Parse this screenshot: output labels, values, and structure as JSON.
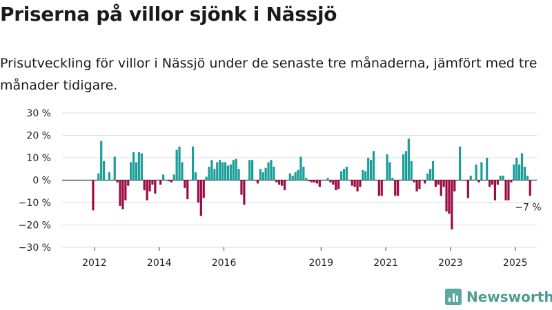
{
  "header": {
    "title": "Priserna på villor sjönk i Nässjö",
    "subtitle": "Prisutveckling för villor i Nässjö under de senaste tre månaderna, jämfört med tre månader tidigare."
  },
  "brand": {
    "name": "Newsworthy",
    "icon": "bar-chart-logo-icon"
  },
  "colors": {
    "positive": "#1b9e9a",
    "negative": "#9c0c43",
    "grid": "#dddddd",
    "zero_line": "#333333"
  },
  "chart_data": {
    "type": "bar",
    "x_start": "2011-01",
    "x_step": "month",
    "x_end": "2025-09",
    "ylim": [
      -30,
      30
    ],
    "yticks": [
      -30,
      -20,
      -10,
      0,
      10,
      20,
      30
    ],
    "ytick_labels": [
      "−30 %",
      "−20 %",
      "−10 %",
      "0 %",
      "10 %",
      "20 %",
      "30 %"
    ],
    "xtick_labels": [
      "2012",
      "2014",
      "2016",
      "2019",
      "2021",
      "2023",
      "2025"
    ],
    "xtick_dates": [
      "2012-01",
      "2014-01",
      "2016-01",
      "2019-01",
      "2021-01",
      "2023-01",
      "2025-01"
    ],
    "grid": true,
    "legend": "none",
    "annotation": {
      "text": "−7 %",
      "date": "2025-06",
      "value": -7
    },
    "bars": [
      {
        "date": "2011-12",
        "value": -13.5
      },
      {
        "date": "2012-01",
        "value": 0
      },
      {
        "date": "2012-02",
        "value": 3
      },
      {
        "date": "2012-03",
        "value": 17.5
      },
      {
        "date": "2012-04",
        "value": 8.5
      },
      {
        "date": "2012-05",
        "value": 0
      },
      {
        "date": "2012-06",
        "value": 3.5
      },
      {
        "date": "2012-07",
        "value": 0
      },
      {
        "date": "2012-08",
        "value": 10.5
      },
      {
        "date": "2012-09",
        "value": -1
      },
      {
        "date": "2012-10",
        "value": -11.5
      },
      {
        "date": "2012-11",
        "value": -13
      },
      {
        "date": "2012-12",
        "value": -9
      },
      {
        "date": "2013-01",
        "value": -2.5
      },
      {
        "date": "2013-02",
        "value": 8
      },
      {
        "date": "2013-03",
        "value": 12.5
      },
      {
        "date": "2013-04",
        "value": 8
      },
      {
        "date": "2013-05",
        "value": 12.5
      },
      {
        "date": "2013-06",
        "value": 12
      },
      {
        "date": "2013-07",
        "value": -4.5
      },
      {
        "date": "2013-08",
        "value": -9
      },
      {
        "date": "2013-09",
        "value": -5
      },
      {
        "date": "2013-10",
        "value": -2
      },
      {
        "date": "2013-11",
        "value": -6
      },
      {
        "date": "2013-12",
        "value": 0
      },
      {
        "date": "2014-01",
        "value": -2
      },
      {
        "date": "2014-02",
        "value": 2.5
      },
      {
        "date": "2014-03",
        "value": 0
      },
      {
        "date": "2014-04",
        "value": -0.5
      },
      {
        "date": "2014-05",
        "value": -1
      },
      {
        "date": "2014-06",
        "value": 2.5
      },
      {
        "date": "2014-07",
        "value": 13.5
      },
      {
        "date": "2014-08",
        "value": 15
      },
      {
        "date": "2014-09",
        "value": 8
      },
      {
        "date": "2014-10",
        "value": -3.5
      },
      {
        "date": "2014-11",
        "value": -8.5
      },
      {
        "date": "2014-12",
        "value": 0
      },
      {
        "date": "2015-01",
        "value": 15
      },
      {
        "date": "2015-02",
        "value": 3.5
      },
      {
        "date": "2015-03",
        "value": -10
      },
      {
        "date": "2015-04",
        "value": -16
      },
      {
        "date": "2015-05",
        "value": -8
      },
      {
        "date": "2015-06",
        "value": 1.5
      },
      {
        "date": "2015-07",
        "value": 6
      },
      {
        "date": "2015-08",
        "value": 9
      },
      {
        "date": "2015-09",
        "value": 5
      },
      {
        "date": "2015-10",
        "value": 8
      },
      {
        "date": "2015-11",
        "value": 9
      },
      {
        "date": "2015-12",
        "value": 8
      },
      {
        "date": "2016-01",
        "value": 8
      },
      {
        "date": "2016-02",
        "value": 6.5
      },
      {
        "date": "2016-03",
        "value": 7
      },
      {
        "date": "2016-04",
        "value": 9
      },
      {
        "date": "2016-05",
        "value": 9.5
      },
      {
        "date": "2016-06",
        "value": 5
      },
      {
        "date": "2016-07",
        "value": -6.5
      },
      {
        "date": "2016-08",
        "value": -11
      },
      {
        "date": "2016-09",
        "value": 0
      },
      {
        "date": "2016-10",
        "value": 9
      },
      {
        "date": "2016-11",
        "value": 9
      },
      {
        "date": "2016-12",
        "value": 0
      },
      {
        "date": "2017-01",
        "value": -1.5
      },
      {
        "date": "2017-02",
        "value": 5
      },
      {
        "date": "2017-03",
        "value": 3.5
      },
      {
        "date": "2017-04",
        "value": 5.5
      },
      {
        "date": "2017-05",
        "value": 8
      },
      {
        "date": "2017-06",
        "value": 9
      },
      {
        "date": "2017-07",
        "value": 6
      },
      {
        "date": "2017-08",
        "value": -1
      },
      {
        "date": "2017-09",
        "value": -2
      },
      {
        "date": "2017-10",
        "value": -2.5
      },
      {
        "date": "2017-11",
        "value": -4.5
      },
      {
        "date": "2017-12",
        "value": 0
      },
      {
        "date": "2018-01",
        "value": 3
      },
      {
        "date": "2018-02",
        "value": 2
      },
      {
        "date": "2018-03",
        "value": 3.5
      },
      {
        "date": "2018-04",
        "value": 4.5
      },
      {
        "date": "2018-05",
        "value": 10.5
      },
      {
        "date": "2018-06",
        "value": 6
      },
      {
        "date": "2018-07",
        "value": 1
      },
      {
        "date": "2018-08",
        "value": -0.5
      },
      {
        "date": "2018-09",
        "value": -1
      },
      {
        "date": "2018-10",
        "value": -1
      },
      {
        "date": "2018-11",
        "value": -1.5
      },
      {
        "date": "2018-12",
        "value": -3
      },
      {
        "date": "2019-01",
        "value": 0
      },
      {
        "date": "2019-02",
        "value": 0
      },
      {
        "date": "2019-03",
        "value": 1
      },
      {
        "date": "2019-04",
        "value": -1
      },
      {
        "date": "2019-05",
        "value": -2
      },
      {
        "date": "2019-06",
        "value": -4.5
      },
      {
        "date": "2019-07",
        "value": -4
      },
      {
        "date": "2019-08",
        "value": 4
      },
      {
        "date": "2019-09",
        "value": 5
      },
      {
        "date": "2019-10",
        "value": 6
      },
      {
        "date": "2019-11",
        "value": 0
      },
      {
        "date": "2019-12",
        "value": -2.5
      },
      {
        "date": "2020-01",
        "value": -3
      },
      {
        "date": "2020-02",
        "value": -5
      },
      {
        "date": "2020-03",
        "value": -3
      },
      {
        "date": "2020-04",
        "value": 4.5
      },
      {
        "date": "2020-05",
        "value": 4
      },
      {
        "date": "2020-06",
        "value": 10
      },
      {
        "date": "2020-07",
        "value": 9
      },
      {
        "date": "2020-08",
        "value": 13
      },
      {
        "date": "2020-09",
        "value": 0
      },
      {
        "date": "2020-10",
        "value": -7
      },
      {
        "date": "2020-11",
        "value": -7
      },
      {
        "date": "2020-12",
        "value": 0
      },
      {
        "date": "2021-01",
        "value": 11.5
      },
      {
        "date": "2021-02",
        "value": 8
      },
      {
        "date": "2021-03",
        "value": 1
      },
      {
        "date": "2021-04",
        "value": -7
      },
      {
        "date": "2021-05",
        "value": -7
      },
      {
        "date": "2021-06",
        "value": 0
      },
      {
        "date": "2021-07",
        "value": 11.5
      },
      {
        "date": "2021-08",
        "value": 13
      },
      {
        "date": "2021-09",
        "value": 18.5
      },
      {
        "date": "2021-10",
        "value": 8.5
      },
      {
        "date": "2021-11",
        "value": -1
      },
      {
        "date": "2021-12",
        "value": -5
      },
      {
        "date": "2022-01",
        "value": -4
      },
      {
        "date": "2022-02",
        "value": 0
      },
      {
        "date": "2022-03",
        "value": -1.5
      },
      {
        "date": "2022-04",
        "value": 3
      },
      {
        "date": "2022-05",
        "value": 5
      },
      {
        "date": "2022-06",
        "value": 8.5
      },
      {
        "date": "2022-07",
        "value": -3
      },
      {
        "date": "2022-08",
        "value": -2
      },
      {
        "date": "2022-09",
        "value": -7
      },
      {
        "date": "2022-10",
        "value": -3
      },
      {
        "date": "2022-11",
        "value": -14
      },
      {
        "date": "2022-12",
        "value": -15
      },
      {
        "date": "2023-01",
        "value": -22
      },
      {
        "date": "2023-02",
        "value": -5
      },
      {
        "date": "2023-03",
        "value": 0
      },
      {
        "date": "2023-04",
        "value": 15
      },
      {
        "date": "2023-05",
        "value": 0
      },
      {
        "date": "2023-06",
        "value": 0
      },
      {
        "date": "2023-07",
        "value": -8
      },
      {
        "date": "2023-08",
        "value": 2
      },
      {
        "date": "2023-09",
        "value": 0
      },
      {
        "date": "2023-10",
        "value": 7
      },
      {
        "date": "2023-11",
        "value": -1
      },
      {
        "date": "2023-12",
        "value": 8
      },
      {
        "date": "2024-01",
        "value": 0
      },
      {
        "date": "2024-02",
        "value": 10
      },
      {
        "date": "2024-03",
        "value": -3
      },
      {
        "date": "2024-04",
        "value": -2
      },
      {
        "date": "2024-05",
        "value": -9
      },
      {
        "date": "2024-06",
        "value": -2
      },
      {
        "date": "2024-07",
        "value": 2
      },
      {
        "date": "2024-08",
        "value": 2
      },
      {
        "date": "2024-09",
        "value": -9
      },
      {
        "date": "2024-10",
        "value": -9
      },
      {
        "date": "2024-11",
        "value": -1
      },
      {
        "date": "2024-12",
        "value": 7
      },
      {
        "date": "2025-01",
        "value": 10
      },
      {
        "date": "2025-02",
        "value": 7
      },
      {
        "date": "2025-03",
        "value": 12
      },
      {
        "date": "2025-04",
        "value": 6
      },
      {
        "date": "2025-05",
        "value": 2
      },
      {
        "date": "2025-06",
        "value": -7
      }
    ]
  }
}
